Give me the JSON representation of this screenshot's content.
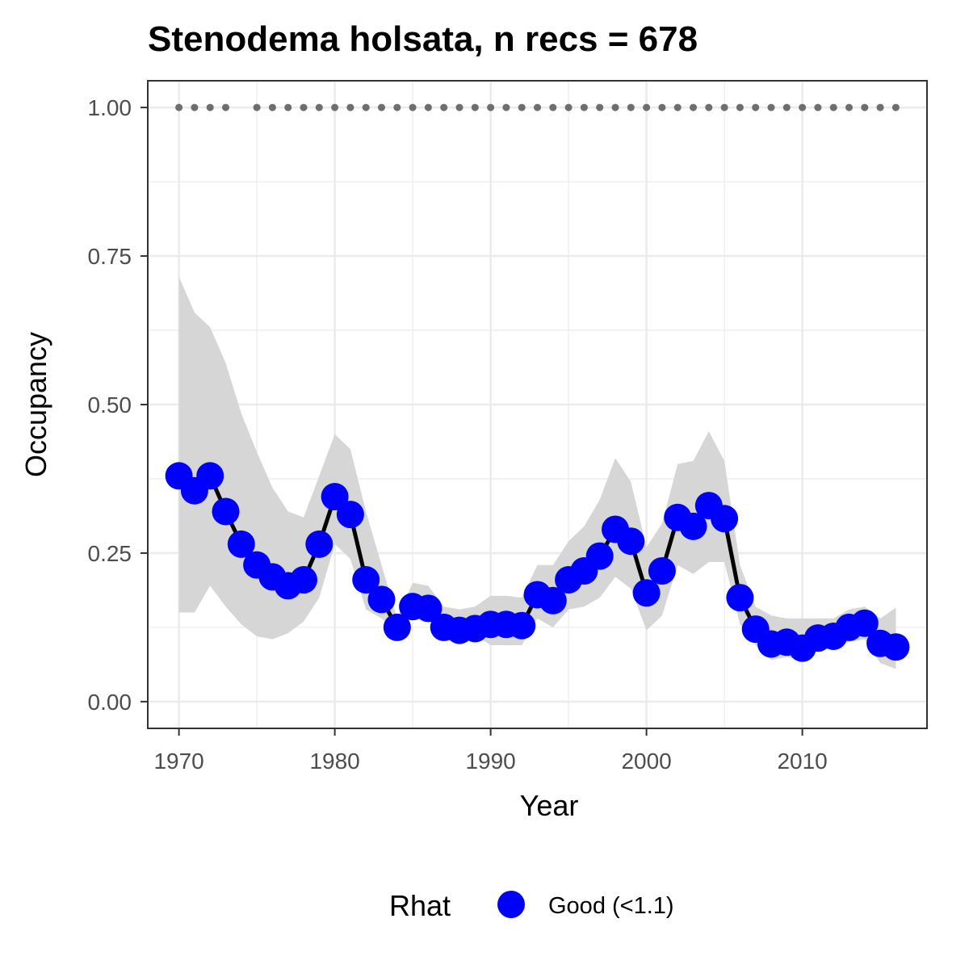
{
  "chart_data": {
    "type": "line",
    "title": "Stenodema holsata, n recs = 678",
    "xlabel": "Year",
    "ylabel": "Occupancy",
    "xlim": [
      1968,
      2018
    ],
    "ylim": [
      -0.045,
      1.045
    ],
    "x_ticks": [
      1970,
      1980,
      1990,
      2000,
      2010
    ],
    "x_tick_labels": [
      "1970",
      "1980",
      "1990",
      "2000",
      "2010"
    ],
    "y_ticks": [
      0,
      0.25,
      0.5,
      0.75,
      1.0
    ],
    "y_tick_labels": [
      "0.00",
      "0.25",
      "0.50",
      "0.75",
      "1.00"
    ],
    "grid": true,
    "legend": {
      "position": "bottom",
      "title": "Rhat",
      "entries": [
        {
          "label": "Good (<1.1)",
          "color": "#0000ff"
        }
      ]
    },
    "colors": {
      "points": "#0000ff",
      "line": "#000000",
      "ribbon": "#d6d6d6",
      "record_marks": "#6e6e6e"
    },
    "series": [
      {
        "name": "Occupancy",
        "x": [
          1970,
          1971,
          1972,
          1973,
          1974,
          1975,
          1976,
          1977,
          1978,
          1979,
          1980,
          1981,
          1982,
          1983,
          1984,
          1985,
          1986,
          1987,
          1988,
          1989,
          1990,
          1991,
          1992,
          1993,
          1994,
          1995,
          1996,
          1997,
          1998,
          1999,
          2000,
          2001,
          2002,
          2003,
          2004,
          2005,
          2006,
          2007,
          2008,
          2009,
          2010,
          2011,
          2012,
          2013,
          2014,
          2015,
          2016
        ],
        "y": [
          0.38,
          0.355,
          0.38,
          0.32,
          0.265,
          0.23,
          0.21,
          0.195,
          0.205,
          0.265,
          0.345,
          0.315,
          0.205,
          0.172,
          0.125,
          0.16,
          0.157,
          0.125,
          0.12,
          0.123,
          0.13,
          0.13,
          0.128,
          0.18,
          0.17,
          0.205,
          0.22,
          0.245,
          0.29,
          0.27,
          0.183,
          0.22,
          0.31,
          0.295,
          0.33,
          0.308,
          0.175,
          0.122,
          0.097,
          0.1,
          0.09,
          0.107,
          0.11,
          0.125,
          0.132,
          0.098,
          0.092
        ],
        "lower": [
          0.15,
          0.15,
          0.195,
          0.16,
          0.13,
          0.11,
          0.105,
          0.115,
          0.135,
          0.175,
          0.265,
          0.24,
          0.155,
          0.14,
          0.12,
          0.145,
          0.14,
          0.118,
          0.113,
          0.113,
          0.095,
          0.095,
          0.095,
          0.14,
          0.125,
          0.155,
          0.16,
          0.175,
          0.21,
          0.19,
          0.12,
          0.145,
          0.23,
          0.215,
          0.235,
          0.235,
          0.13,
          0.095,
          0.07,
          0.075,
          0.07,
          0.085,
          0.09,
          0.1,
          0.105,
          0.065,
          0.055
        ],
        "upper": [
          0.715,
          0.655,
          0.63,
          0.57,
          0.485,
          0.42,
          0.36,
          0.32,
          0.31,
          0.38,
          0.45,
          0.425,
          0.32,
          0.23,
          0.14,
          0.2,
          0.195,
          0.16,
          0.155,
          0.16,
          0.178,
          0.178,
          0.175,
          0.23,
          0.23,
          0.27,
          0.295,
          0.34,
          0.41,
          0.37,
          0.26,
          0.3,
          0.4,
          0.405,
          0.455,
          0.405,
          0.23,
          0.16,
          0.145,
          0.14,
          0.14,
          0.14,
          0.14,
          0.155,
          0.16,
          0.14,
          0.158
        ]
      }
    ],
    "record_years": [
      1970,
      1971,
      1972,
      1973,
      1975,
      1976,
      1977,
      1978,
      1979,
      1980,
      1981,
      1982,
      1983,
      1984,
      1985,
      1986,
      1987,
      1988,
      1989,
      1990,
      1991,
      1992,
      1993,
      1994,
      1995,
      1996,
      1997,
      1998,
      1999,
      2000,
      2001,
      2002,
      2003,
      2004,
      2005,
      2006,
      2007,
      2008,
      2009,
      2010,
      2011,
      2012,
      2013,
      2014,
      2015,
      2016
    ],
    "record_level": 1.0
  }
}
